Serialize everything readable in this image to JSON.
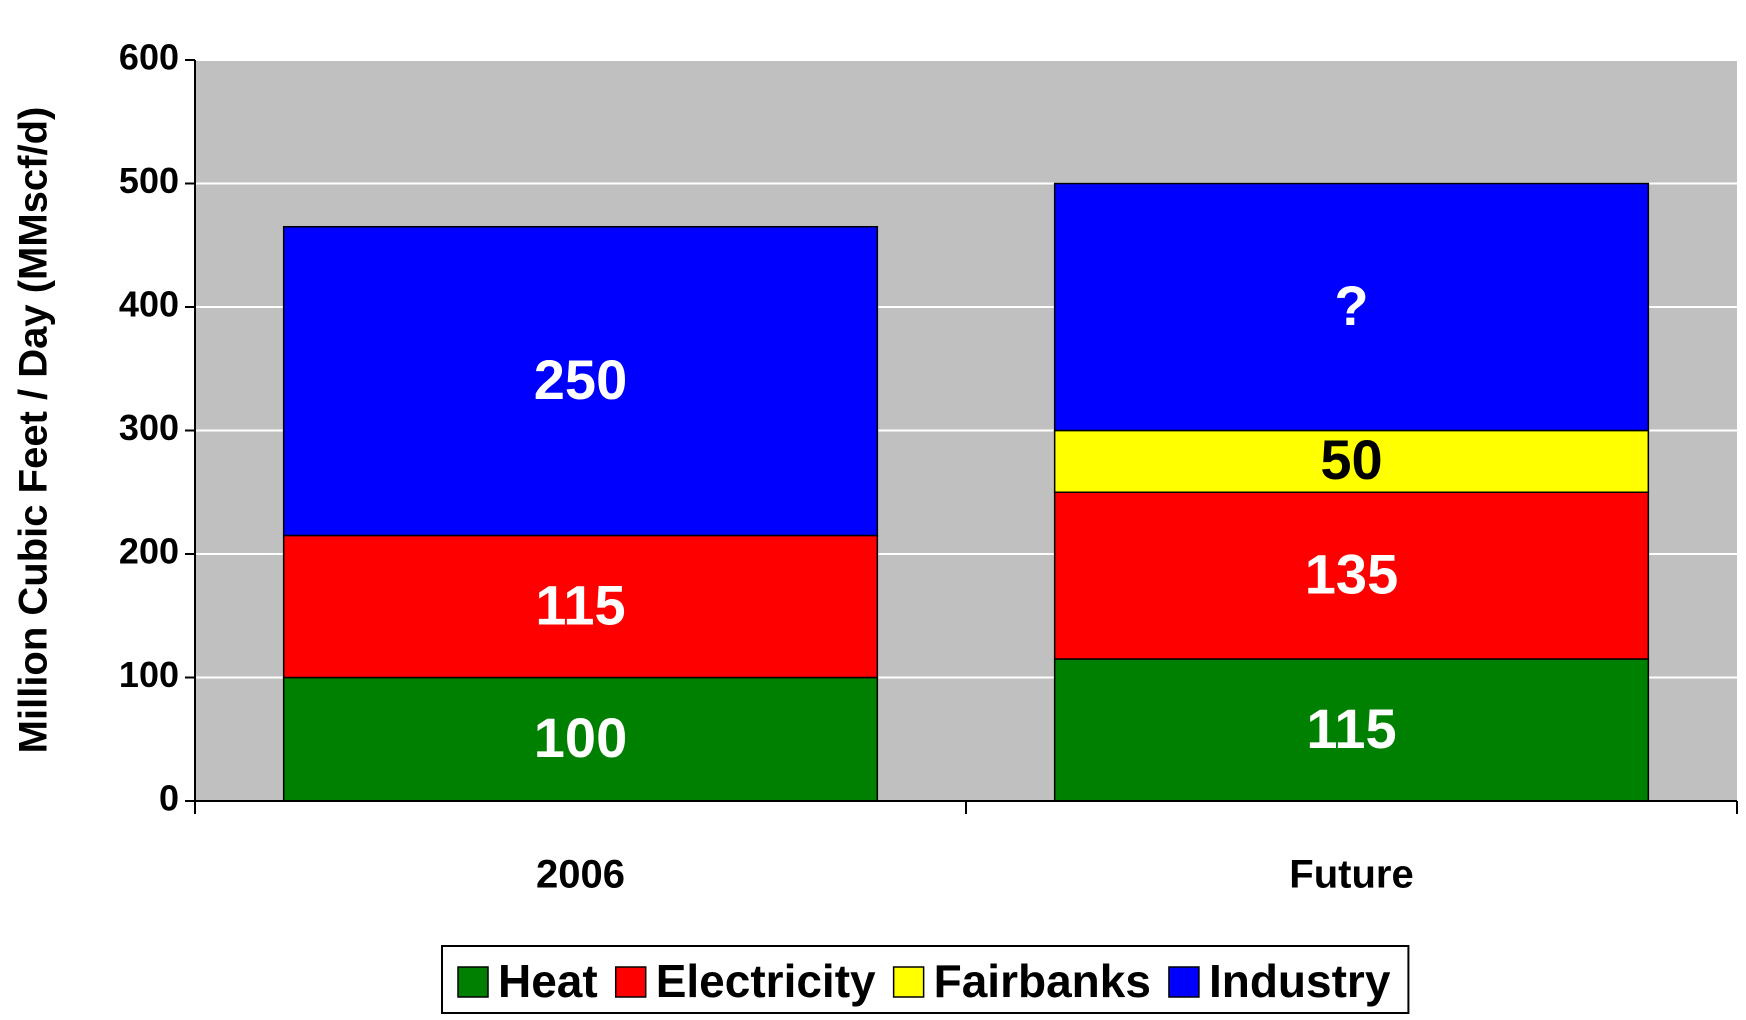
{
  "chart_data": {
    "type": "stacked_bar",
    "y_label": "Million Cubic Feet / Day (MMscf/d)",
    "categories": [
      "2006",
      "Future"
    ],
    "series": [
      {
        "name": "Heat",
        "color": "#008000",
        "label_color": "#ffffff",
        "values": [
          100,
          115
        ]
      },
      {
        "name": "Electricity",
        "color": "#ff0000",
        "label_color": "#ffffff",
        "values": [
          115,
          135
        ]
      },
      {
        "name": "Fairbanks",
        "color": "#ffff00",
        "label_color": "#000000",
        "values": [
          null,
          50
        ]
      },
      {
        "name": "Industry",
        "color": "#0000ff",
        "label_color": "#ffffff",
        "values": [
          250,
          200
        ],
        "value_labels": [
          "250",
          "?"
        ]
      }
    ],
    "ylim": [
      0,
      600
    ],
    "yticks": [
      0,
      100,
      200,
      300,
      400,
      500,
      600
    ],
    "grid": true,
    "plot_background": "#c0c0c0",
    "legend": "bottom"
  }
}
